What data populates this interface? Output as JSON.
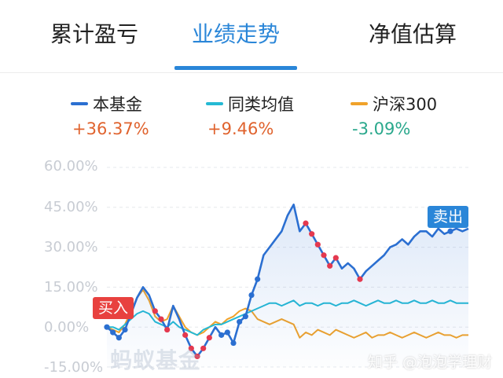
{
  "tabs": [
    {
      "label": "累计盈亏"
    },
    {
      "label": "业绩走势"
    },
    {
      "label": "净值估算"
    }
  ],
  "active_tab": 1,
  "legend": [
    {
      "name": "本基金",
      "value": "+36.37%",
      "color": "#2b6fd1",
      "value_color": "#e0632e"
    },
    {
      "name": "同类均值",
      "value": "+9.46%",
      "color": "#25b9d4",
      "value_color": "#e0632e"
    },
    {
      "name": "沪深300",
      "value": "-3.09%",
      "color": "#f0a22a",
      "value_color": "#2aa88c"
    }
  ],
  "chart_data": {
    "type": "line",
    "ytick_labels": [
      "60.00%",
      "45.00%",
      "30.00%",
      "15.00%",
      "0.00%",
      "-15.00%"
    ],
    "ylim": [
      -15,
      60
    ],
    "x": [
      0,
      1,
      2,
      3,
      4,
      5,
      6,
      7,
      8,
      9,
      10,
      11,
      12,
      13,
      14,
      15,
      16,
      17,
      18,
      19,
      20,
      21,
      22,
      23,
      24,
      25,
      26,
      27,
      28,
      29,
      30,
      31,
      32,
      33,
      34,
      35,
      36,
      37,
      38,
      39,
      40,
      41,
      42,
      43,
      44,
      45,
      46,
      47,
      48,
      49,
      50,
      51,
      52,
      53,
      54,
      55,
      56,
      57,
      58,
      59,
      60
    ],
    "series": [
      {
        "name": "本基金",
        "color": "#2b6fd1",
        "values": [
          0,
          -2,
          -4,
          -1,
          5,
          11,
          15,
          12,
          6,
          3,
          -1,
          8,
          3,
          -3,
          -8,
          -11,
          -8,
          -4,
          0,
          -3,
          -2,
          -6,
          2,
          4,
          12,
          18,
          27,
          30,
          33,
          36,
          42,
          46,
          36,
          39,
          35,
          31,
          27,
          23,
          26,
          22,
          24,
          22,
          18,
          21,
          23,
          25,
          27,
          30,
          31,
          33,
          31,
          34,
          36,
          36,
          34,
          37,
          35,
          36,
          37,
          36,
          37
        ]
      },
      {
        "name": "同类均值",
        "color": "#25b9d4",
        "values": [
          0,
          0,
          -1,
          1,
          3,
          5,
          6,
          5,
          2,
          1,
          0,
          2,
          0,
          -1,
          -2,
          -3,
          -1,
          0,
          1,
          1,
          2,
          3,
          4,
          5,
          6,
          7,
          8,
          9,
          9,
          8,
          9,
          10,
          8,
          9,
          9,
          8,
          9,
          9,
          8,
          9,
          9,
          10,
          9,
          8,
          9,
          10,
          9,
          9,
          10,
          9,
          9,
          10,
          9,
          9,
          10,
          9,
          9,
          10,
          9,
          9,
          9
        ]
      },
      {
        "name": "沪深300",
        "color": "#f0a22a",
        "values": [
          0,
          -1,
          -2,
          1,
          6,
          11,
          14,
          10,
          4,
          2,
          3,
          8,
          4,
          0,
          -2,
          -3,
          -2,
          0,
          2,
          1,
          3,
          4,
          6,
          7,
          6,
          3,
          2,
          1,
          2,
          3,
          2,
          1,
          -4,
          -2,
          -3,
          -1,
          -2,
          -3,
          -1,
          -2,
          -3,
          -4,
          -3,
          -2,
          -4,
          -3,
          -3,
          -2,
          -3,
          -4,
          -3,
          -2,
          -3,
          -4,
          -3,
          -2,
          -3,
          -3,
          -4,
          -3,
          -3
        ]
      }
    ],
    "sell_markers_x": [
      8,
      9,
      10,
      13,
      14,
      15,
      16,
      17,
      33,
      34,
      35,
      36,
      37,
      38,
      42
    ],
    "buy_markers_x": [
      0,
      1,
      2,
      3,
      19,
      20,
      21,
      22,
      23,
      24,
      25,
      57
    ],
    "annotations": [
      {
        "text": "买入",
        "color": "#e8413f"
      },
      {
        "text": "卖出",
        "color": "#2a86d8"
      }
    ],
    "grid": true
  },
  "watermark": "蚂蚁基金",
  "credit": "知乎 @泡泡学理财"
}
